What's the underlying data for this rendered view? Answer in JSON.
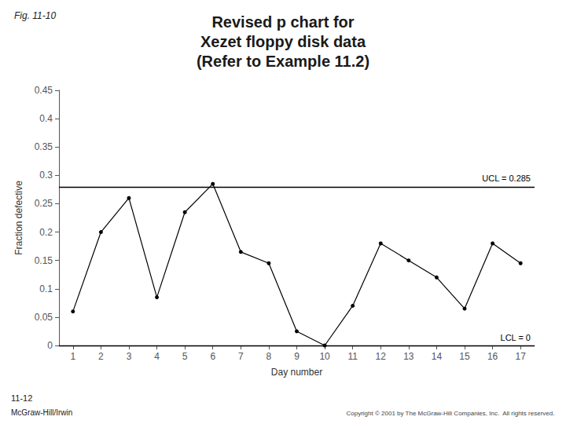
{
  "chart_data": {
    "type": "line",
    "title": "Revised p chart for\nXezet floppy disk data\n(Refer to Example 11.2)",
    "x_label": "Day number",
    "y_label": "Fraction defective",
    "x": [
      1,
      2,
      3,
      4,
      5,
      6,
      7,
      8,
      9,
      10,
      11,
      12,
      13,
      14,
      15,
      16,
      17
    ],
    "values": [
      0.06,
      0.2,
      0.26,
      0.085,
      0.235,
      0.285,
      0.165,
      0.145,
      0.025,
      0.0,
      0.07,
      0.18,
      0.15,
      0.12,
      0.065,
      0.18,
      0.145
    ],
    "color": "#000000",
    "marker": "circle",
    "xlim": [
      0.5,
      17.5
    ],
    "xticks": [
      1,
      2,
      3,
      4,
      5,
      6,
      7,
      8,
      9,
      10,
      11,
      12,
      13,
      14,
      15,
      16,
      17
    ],
    "ylim": [
      0,
      0.45
    ],
    "yticks": [
      0,
      0.05,
      0.1,
      0.15,
      0.2,
      0.25,
      0.3,
      0.35,
      0.4,
      0.45
    ],
    "grid": false,
    "annotations": [
      {
        "text": "UCL = 0.285",
        "y": 0.285
      },
      {
        "text": "LCL = 0",
        "y": 0.0
      },
      {
        "text": "Fig. 11-10"
      },
      {
        "text": "11-12"
      },
      {
        "text": "McGraw-Hill/Irwin"
      },
      {
        "text": "Copyright © 2001 by The McGraw-Hill Companies, Inc.  All rights reserved."
      }
    ]
  }
}
